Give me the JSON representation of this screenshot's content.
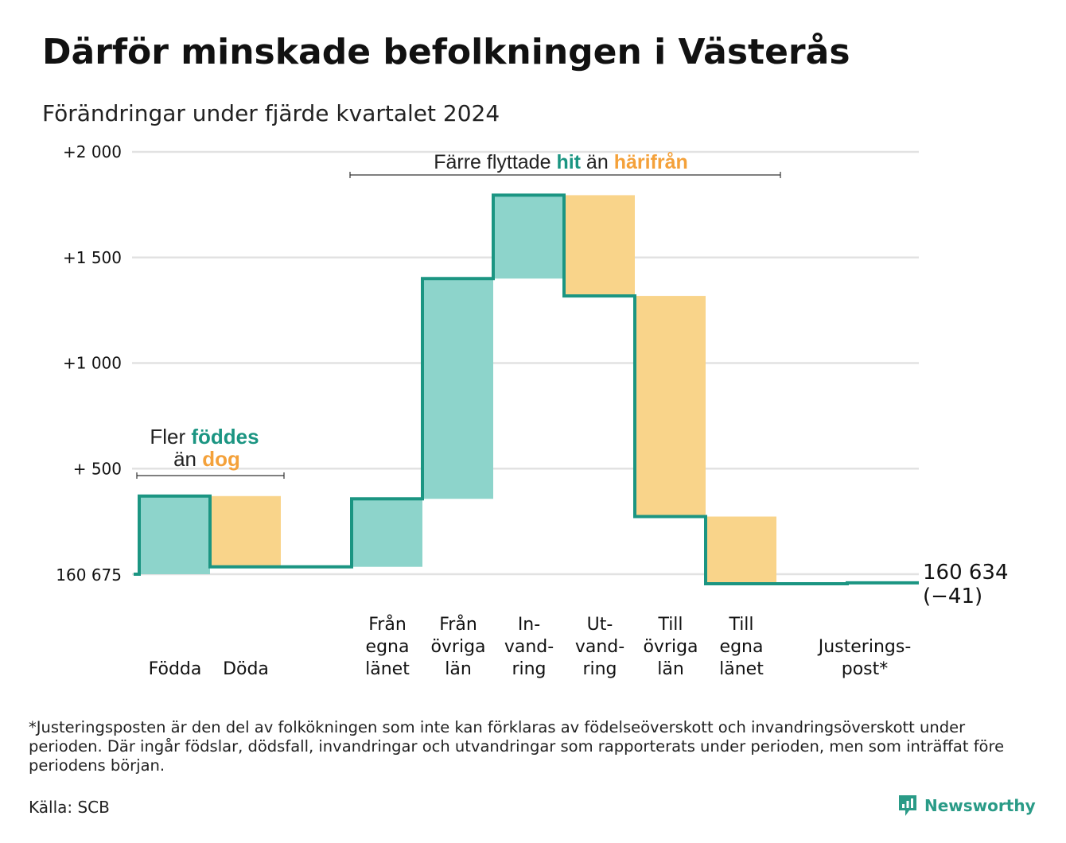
{
  "title": "Därför minskade befolkningen i Västerås",
  "subtitle": "Förändringar under fjärde kvartalet 2024",
  "chart_data": {
    "type": "waterfall",
    "baseline_value": 160675,
    "baseline_label": "160 675",
    "y_ticks": [
      {
        "value": 2000,
        "label": "+2 000"
      },
      {
        "value": 1500,
        "label": "+1 500"
      },
      {
        "value": 1000,
        "label": "+1 000"
      },
      {
        "value": 500,
        "label": "+  500"
      }
    ],
    "ylim": [
      0,
      2000
    ],
    "grid": true,
    "steps": [
      {
        "category": "Födda",
        "label_lines": [
          "Födda"
        ],
        "change": 370
      },
      {
        "category": "Döda",
        "label_lines": [
          "Döda"
        ],
        "change": -335
      },
      {
        "category": "Från egna länet",
        "label_lines": [
          "Från",
          "egna",
          "länet"
        ],
        "change": 322
      },
      {
        "category": "Från övriga län",
        "label_lines": [
          "Från",
          "övriga",
          "län"
        ],
        "change": 1043
      },
      {
        "category": "Invandring",
        "label_lines": [
          "In-",
          "vand-",
          "ring"
        ],
        "change": 395
      },
      {
        "category": "Utvandring",
        "label_lines": [
          "Ut-",
          "vand-",
          "ring"
        ],
        "change": -477
      },
      {
        "category": "Till övriga län",
        "label_lines": [
          "Till",
          "övriga",
          "län"
        ],
        "change": -1045
      },
      {
        "category": "Till egna länet",
        "label_lines": [
          "Till",
          "egna",
          "länet"
        ],
        "change": -318
      },
      {
        "category": "Justeringspost*",
        "label_lines": [
          "Justerings-",
          "post*"
        ],
        "change": 4
      }
    ],
    "end_label_lines": [
      "160 634",
      "(−41)"
    ],
    "colors": {
      "increase": "#8dd4cb",
      "decrease": "#f9d48a",
      "line": "#1b9582",
      "grid": "#e2e2e2"
    },
    "annotations": [
      {
        "id": "births",
        "line1": [
          {
            "text": "Fler ",
            "color": "#222222",
            "bold": false
          },
          {
            "text": "föddes",
            "color": "#1b9582",
            "bold": true
          }
        ],
        "line2": [
          {
            "text": "än ",
            "color": "#222222",
            "bold": false
          },
          {
            "text": "dog",
            "color": "#f4a13a",
            "bold": true
          }
        ]
      },
      {
        "id": "moves",
        "line1": [
          {
            "text": "Färre flyttade ",
            "color": "#222222",
            "bold": false
          },
          {
            "text": "hit",
            "color": "#1b9582",
            "bold": true
          },
          {
            "text": " än ",
            "color": "#222222",
            "bold": false
          },
          {
            "text": "härifrån",
            "color": "#f4a13a",
            "bold": true
          }
        ]
      }
    ]
  },
  "footnote": "*Justeringsposten är den del av folkökningen som inte kan förklaras av födelseöverskott och invandringsöverskott under perioden. Där ingår födslar, dödsfall, invandringar och utvandringar som rapporterats under perioden, men som inträffat före periodens början.",
  "source": "Källa: SCB",
  "logo": {
    "text": "Newsworthy",
    "icon": "newsworthy-chart-bubble-icon"
  }
}
